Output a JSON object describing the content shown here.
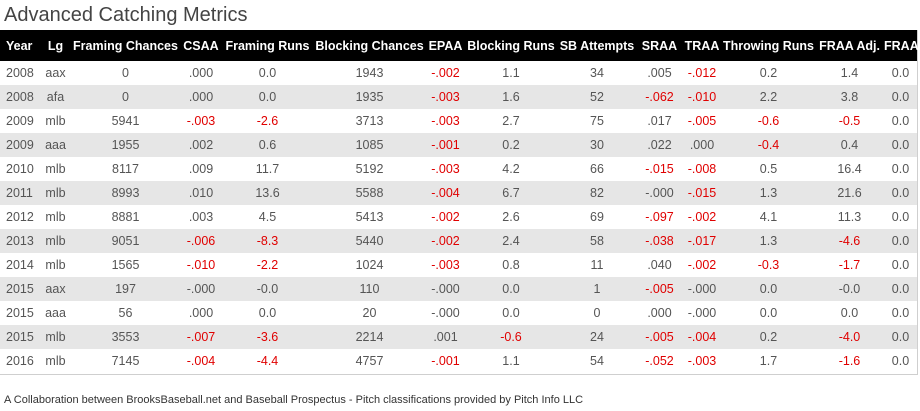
{
  "title": "Advanced Catching Metrics",
  "columns": [
    "Year",
    "Lg",
    "Framing Chances",
    "CSAA",
    "Framing Runs",
    "Blocking Chances",
    "EPAA",
    "Blocking Runs",
    "SB Attempts",
    "SRAA",
    "TRAA",
    "Throwing Runs",
    "FRAA Adj.",
    "FRAA"
  ],
  "rows": [
    [
      "2008",
      "aax",
      "0",
      ".000",
      "0.0",
      "1943",
      "-.002",
      "1.1",
      "34",
      ".005",
      "-.012",
      "0.2",
      "1.4",
      "0.0"
    ],
    [
      "2008",
      "afa",
      "0",
      ".000",
      "0.0",
      "1935",
      "-.003",
      "1.6",
      "52",
      "-.062",
      "-.010",
      "2.2",
      "3.8",
      "0.0"
    ],
    [
      "2009",
      "mlb",
      "5941",
      "-.003",
      "-2.6",
      "3713",
      "-.003",
      "2.7",
      "75",
      ".017",
      "-.005",
      "-0.6",
      "-0.5",
      "0.0"
    ],
    [
      "2009",
      "aaa",
      "1955",
      ".002",
      "0.6",
      "1085",
      "-.001",
      "0.2",
      "30",
      ".022",
      ".000",
      "-0.4",
      "0.4",
      "0.0"
    ],
    [
      "2010",
      "mlb",
      "8117",
      ".009",
      "11.7",
      "5192",
      "-.003",
      "4.2",
      "66",
      "-.015",
      "-.008",
      "0.5",
      "16.4",
      "0.0"
    ],
    [
      "2011",
      "mlb",
      "8993",
      ".010",
      "13.6",
      "5588",
      "-.004",
      "6.7",
      "82",
      "-.000",
      "-.015",
      "1.3",
      "21.6",
      "0.0"
    ],
    [
      "2012",
      "mlb",
      "8881",
      ".003",
      "4.5",
      "5413",
      "-.002",
      "2.6",
      "69",
      "-.097",
      "-.002",
      "4.1",
      "11.3",
      "0.0"
    ],
    [
      "2013",
      "mlb",
      "9051",
      "-.006",
      "-8.3",
      "5440",
      "-.002",
      "2.4",
      "58",
      "-.038",
      "-.017",
      "1.3",
      "-4.6",
      "0.0"
    ],
    [
      "2014",
      "mlb",
      "1565",
      "-.010",
      "-2.2",
      "1024",
      "-.003",
      "0.8",
      "11",
      ".040",
      "-.002",
      "-0.3",
      "-1.7",
      "0.0"
    ],
    [
      "2015",
      "aax",
      "197",
      "-.000",
      "-0.0",
      "110",
      "-.000",
      "0.0",
      "1",
      "-.005",
      "-.000",
      "0.0",
      "-0.0",
      "0.0"
    ],
    [
      "2015",
      "aaa",
      "56",
      ".000",
      "0.0",
      "20",
      "-.000",
      "0.0",
      "0",
      ".000",
      "-.000",
      "0.0",
      "0.0",
      "0.0"
    ],
    [
      "2015",
      "mlb",
      "3553",
      "-.007",
      "-3.6",
      "2214",
      ".001",
      "-0.6",
      "24",
      "-.005",
      "-.004",
      "0.2",
      "-4.0",
      "0.0"
    ],
    [
      "2016",
      "mlb",
      "7145",
      "-.004",
      "-4.4",
      "4757",
      "-.001",
      "1.1",
      "54",
      "-.052",
      "-.003",
      "1.7",
      "-1.6",
      "0.0"
    ]
  ],
  "red_cells": [
    [
      0,
      6
    ],
    [
      0,
      10
    ],
    [
      1,
      6
    ],
    [
      1,
      9
    ],
    [
      1,
      10
    ],
    [
      2,
      3
    ],
    [
      2,
      4
    ],
    [
      2,
      6
    ],
    [
      2,
      10
    ],
    [
      2,
      11
    ],
    [
      2,
      12
    ],
    [
      3,
      6
    ],
    [
      3,
      11
    ],
    [
      4,
      6
    ],
    [
      4,
      9
    ],
    [
      4,
      10
    ],
    [
      5,
      6
    ],
    [
      5,
      10
    ],
    [
      6,
      6
    ],
    [
      6,
      9
    ],
    [
      6,
      10
    ],
    [
      7,
      3
    ],
    [
      7,
      4
    ],
    [
      7,
      6
    ],
    [
      7,
      9
    ],
    [
      7,
      10
    ],
    [
      7,
      12
    ],
    [
      8,
      3
    ],
    [
      8,
      4
    ],
    [
      8,
      6
    ],
    [
      8,
      10
    ],
    [
      8,
      11
    ],
    [
      8,
      12
    ],
    [
      9,
      9
    ],
    [
      11,
      3
    ],
    [
      11,
      4
    ],
    [
      11,
      7
    ],
    [
      11,
      9
    ],
    [
      11,
      10
    ],
    [
      11,
      12
    ],
    [
      12,
      3
    ],
    [
      12,
      4
    ],
    [
      12,
      6
    ],
    [
      12,
      9
    ],
    [
      12,
      10
    ],
    [
      12,
      12
    ]
  ],
  "footer": "A Collaboration between BrooksBaseball.net and Baseball Prospectus - Pitch classifications provided by Pitch Info LLC",
  "colors": {
    "header_bg": "#000000",
    "negative": "#e00000",
    "stripe": "#e6e6e6"
  }
}
